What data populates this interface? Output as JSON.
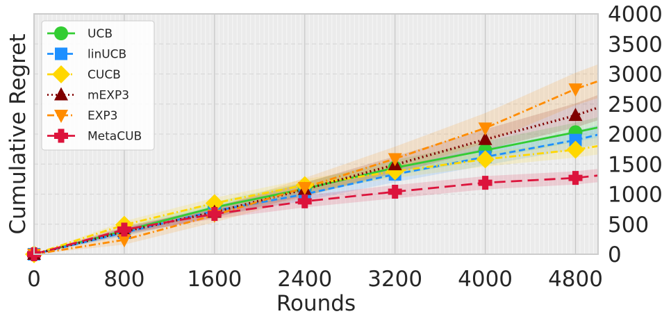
{
  "chart_data": {
    "type": "line",
    "xlabel": "Rounds",
    "ylabel": "Cumulative Regret",
    "xlim": [
      0,
      5000
    ],
    "ylim": [
      0,
      4000
    ],
    "xticks": [
      "0",
      "800",
      "1600",
      "2400",
      "3200",
      "4000",
      "4800"
    ],
    "yticks": [
      "0",
      "500",
      "1000",
      "1500",
      "2000",
      "2500",
      "3000",
      "3500",
      "4000"
    ],
    "y_axis_side": "right",
    "grid": true,
    "legend_position": "top-left",
    "series": [
      {
        "name": "UCB",
        "color": "#32cd32",
        "dash": "solid",
        "marker": "circle",
        "x": [
          0,
          800,
          1600,
          2400,
          3200,
          4000,
          4800,
          5000
        ],
        "y": [
          0,
          390,
          780,
          1090,
          1440,
          1730,
          2030,
          2110
        ],
        "band": [
          0,
          60,
          90,
          110,
          130,
          150,
          160,
          170
        ]
      },
      {
        "name": "linUCB",
        "color": "#1e90ff",
        "dash": "dashed",
        "marker": "square",
        "x": [
          0,
          800,
          1600,
          2400,
          3200,
          4000,
          4800,
          5000
        ],
        "y": [
          0,
          360,
          720,
          1000,
          1330,
          1620,
          1900,
          1990
        ],
        "band": [
          0,
          60,
          90,
          110,
          130,
          140,
          150,
          160
        ]
      },
      {
        "name": "CUCB",
        "color": "#ffd700",
        "dash": "dashdot",
        "marker": "diamond",
        "x": [
          0,
          800,
          1600,
          2400,
          3200,
          4000,
          4800,
          5000
        ],
        "y": [
          0,
          490,
          850,
          1150,
          1380,
          1580,
          1740,
          1800
        ],
        "band": [
          0,
          60,
          90,
          100,
          110,
          120,
          130,
          140
        ]
      },
      {
        "name": "mEXP3",
        "color": "#800000",
        "dash": "dotted",
        "marker": "triangle-up",
        "x": [
          0,
          800,
          1600,
          2400,
          3200,
          4000,
          4800,
          5000
        ],
        "y": [
          0,
          380,
          700,
          1080,
          1490,
          1910,
          2310,
          2440
        ],
        "band": [
          0,
          60,
          90,
          110,
          140,
          170,
          200,
          210
        ]
      },
      {
        "name": "EXP3",
        "color": "#ff8c00",
        "dash": "dashdot",
        "marker": "triangle-down",
        "x": [
          0,
          800,
          1600,
          2400,
          3200,
          4000,
          4800,
          5000
        ],
        "y": [
          0,
          240,
          650,
          1110,
          1590,
          2100,
          2750,
          2880
        ],
        "band": [
          0,
          80,
          120,
          160,
          200,
          250,
          270,
          280
        ]
      },
      {
        "name": "MetaCUB",
        "color": "#dc143c",
        "dash": "longdash",
        "marker": "plus",
        "x": [
          0,
          800,
          1600,
          2400,
          3200,
          4000,
          4800,
          5000
        ],
        "y": [
          0,
          410,
          670,
          880,
          1040,
          1190,
          1270,
          1310
        ],
        "band": [
          0,
          60,
          80,
          100,
          110,
          110,
          110,
          110
        ]
      }
    ]
  }
}
